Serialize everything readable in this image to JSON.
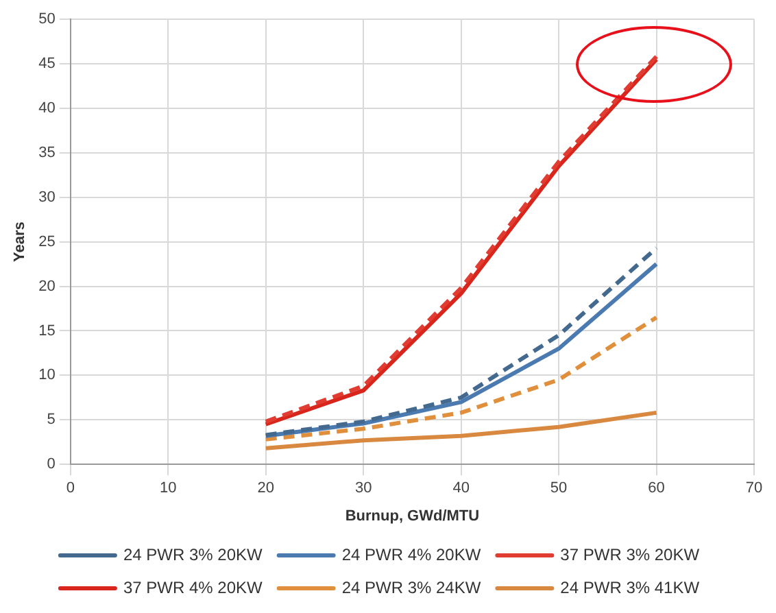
{
  "chart_data": {
    "type": "line",
    "xlabel": "Burnup, GWd/MTU",
    "ylabel": "Years",
    "x": [
      20,
      30,
      40,
      50,
      60
    ],
    "series": [
      {
        "name": "24 PWR 3% 20KW",
        "color": "#44698f",
        "line_style": "dashed",
        "values": [
          3.3,
          4.8,
          7.5,
          14.5,
          24.3
        ]
      },
      {
        "name": "24 PWR 4% 20KW",
        "color": "#4a7ab0",
        "line_style": "solid",
        "values": [
          3.2,
          4.6,
          7,
          13,
          22.5
        ]
      },
      {
        "name": "37 PWR 3% 20KW",
        "color": "#e03c31",
        "line_style": "dashed",
        "values": [
          4.8,
          8.8,
          19.8,
          34,
          45.8
        ]
      },
      {
        "name": "37 PWR 4% 20KW",
        "color": "#d9261c",
        "line_style": "solid",
        "values": [
          4.5,
          8.3,
          19.2,
          33.5,
          45.5
        ]
      },
      {
        "name": "24 PWR 3% 24KW",
        "color": "#e0903c",
        "line_style": "dashed",
        "values": [
          2.8,
          4,
          5.8,
          9.5,
          16.5
        ]
      },
      {
        "name": "24 PWR 3% 41KW",
        "color": "#d9883f",
        "line_style": "solid",
        "values": [
          1.8,
          2.7,
          3.2,
          4.2,
          5.8
        ]
      }
    ],
    "xlim": [
      0,
      70
    ],
    "xticks": [
      0,
      10,
      20,
      30,
      40,
      50,
      60,
      70
    ],
    "ylim": [
      0,
      50
    ],
    "yticks": [
      0,
      5,
      10,
      15,
      20,
      25,
      30,
      35,
      40,
      45,
      50
    ],
    "grid": true,
    "legend": "bottom",
    "marker": "none"
  }
}
